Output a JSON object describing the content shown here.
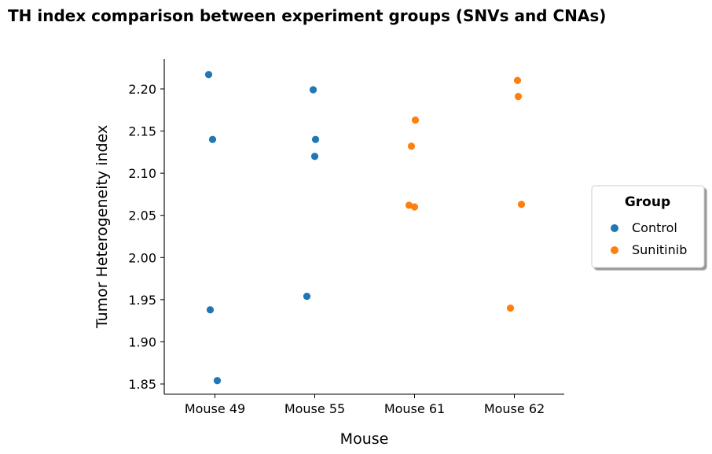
{
  "chart_data": {
    "type": "scatter",
    "title": "TH index comparison between experiment groups (SNVs and CNAs)",
    "xlabel": "Mouse",
    "ylabel": "Tumor Heterogeneity index",
    "categories": [
      "Mouse 49",
      "Mouse 55",
      "Mouse 61",
      "Mouse 62"
    ],
    "ylim": [
      1.835,
      2.235
    ],
    "yticks": [
      1.85,
      1.9,
      1.95,
      2.0,
      2.05,
      2.1,
      2.15,
      2.2
    ],
    "ytick_labels": [
      "1.85",
      "1.90",
      "1.95",
      "2.00",
      "2.05",
      "2.10",
      "2.15",
      "2.20"
    ],
    "grid": false,
    "legend": {
      "title": "Group",
      "placement": "center-right-outside",
      "entries": [
        "Control",
        "Sunitinib"
      ]
    },
    "series": [
      {
        "name": "Control",
        "color": "#1f77b4",
        "points": [
          {
            "category": "Mouse 49",
            "y": 2.217
          },
          {
            "category": "Mouse 49",
            "y": 2.14
          },
          {
            "category": "Mouse 49",
            "y": 1.938
          },
          {
            "category": "Mouse 49",
            "y": 1.854
          },
          {
            "category": "Mouse 55",
            "y": 2.199
          },
          {
            "category": "Mouse 55",
            "y": 2.14
          },
          {
            "category": "Mouse 55",
            "y": 2.12
          },
          {
            "category": "Mouse 55",
            "y": 1.954
          }
        ]
      },
      {
        "name": "Sunitinib",
        "color": "#ff7f0e",
        "points": [
          {
            "category": "Mouse 61",
            "y": 2.163
          },
          {
            "category": "Mouse 61",
            "y": 2.132
          },
          {
            "category": "Mouse 61",
            "y": 2.062
          },
          {
            "category": "Mouse 61",
            "y": 2.06
          },
          {
            "category": "Mouse 62",
            "y": 2.21
          },
          {
            "category": "Mouse 62",
            "y": 2.191
          },
          {
            "category": "Mouse 62",
            "y": 2.063
          },
          {
            "category": "Mouse 62",
            "y": 1.94
          }
        ]
      }
    ]
  }
}
